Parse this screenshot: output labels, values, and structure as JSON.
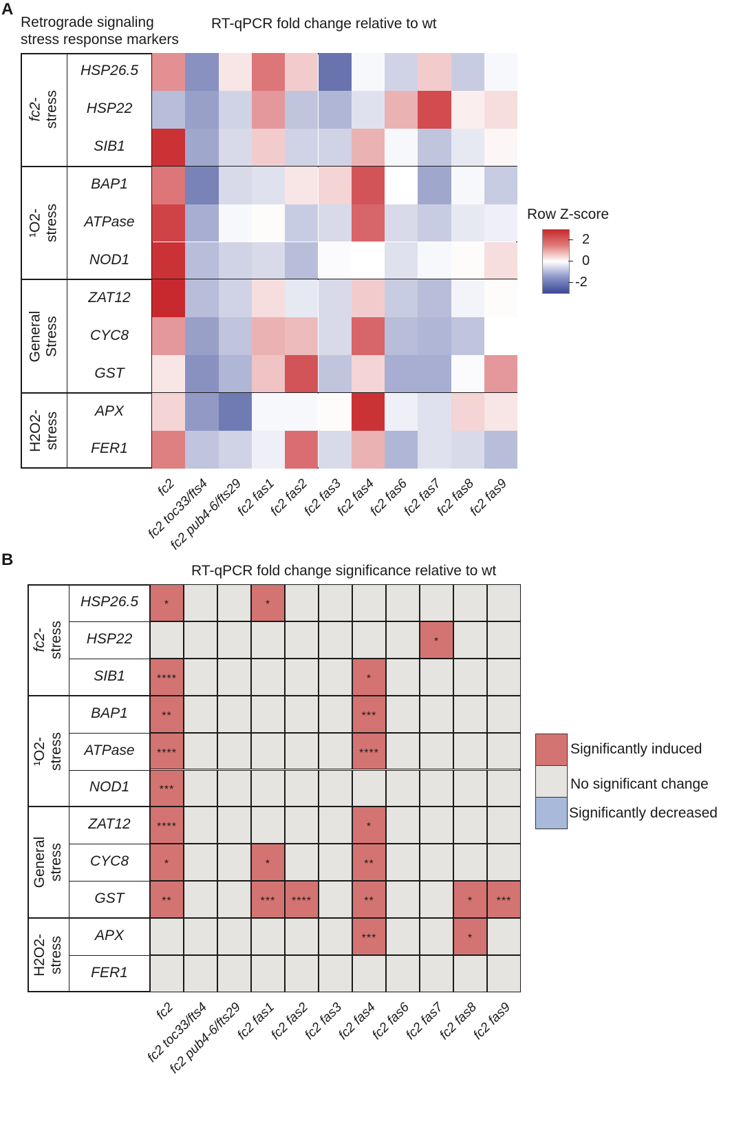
{
  "panel_a": {
    "letter": "A",
    "header_left": [
      "Retrograde signaling",
      "stress response markers"
    ],
    "header_center": "RT-qPCR fold change relative to wt",
    "legend": {
      "title": "Row Z-score",
      "ticks": [
        "2",
        "0",
        "-2"
      ]
    }
  },
  "panel_b": {
    "letter": "B",
    "header_center": "RT-qPCR fold change significance relative to wt",
    "legend": {
      "items": [
        {
          "label": "Significantly induced",
          "color": "#d47472"
        },
        {
          "label": "No significant change",
          "color": "#e5e4e0"
        },
        {
          "label": "Significantly decreased",
          "color": "#a9b9d9"
        }
      ]
    }
  },
  "colors": {
    "induced": "#d47472",
    "neutral": "#e5e4e0",
    "decreased": "#a9b9d9",
    "high": "#c8292e",
    "low": "#3a4896"
  },
  "chart_data": [
    {
      "type": "heatmap",
      "title": "RT-qPCR fold change relative to wt",
      "legend_title": "Row Z-score",
      "value_range": [
        -2.5,
        2.5
      ],
      "columns": [
        "fc2",
        "fc2 toc33/fts4",
        "fc2 pub4-6/fts29",
        "fc2 fas1",
        "fc2 fas2",
        "fc2 fas3",
        "fc2 fas4",
        "fc2 fas6",
        "fc2 fas7",
        "fc2 fas8",
        "fc2 fas9"
      ],
      "groups": [
        {
          "label": [
            "fc2-",
            "stress"
          ],
          "genes": [
            "HSP26.5",
            "HSP22",
            "SIB1"
          ]
        },
        {
          "label": [
            "¹O2-",
            "stress"
          ],
          "genes": [
            "BAP1",
            "ATPase",
            "NOD1"
          ]
        },
        {
          "label": [
            "General",
            "Stress"
          ],
          "genes": [
            "ZAT12",
            "CYC8",
            "GST"
          ]
        },
        {
          "label": [
            "H2O2-",
            "stress"
          ],
          "genes": [
            "APX",
            "FER1"
          ]
        }
      ],
      "values": [
        [
          1.3,
          -1.5,
          0.3,
          1.6,
          0.6,
          -1.9,
          -0.1,
          -0.6,
          0.6,
          -0.7,
          -0.1
        ],
        [
          -0.9,
          -1.3,
          -0.6,
          1.2,
          -0.8,
          -1.0,
          -0.4,
          0.9,
          2.1,
          0.2,
          0.4
        ],
        [
          2.4,
          -1.2,
          -0.5,
          0.6,
          -0.6,
          -0.6,
          0.9,
          -0.1,
          -0.8,
          -0.3,
          0.1
        ],
        [
          1.6,
          -1.7,
          -0.5,
          -0.4,
          0.3,
          0.5,
          2.0,
          0.0,
          -1.2,
          -0.1,
          -0.7
        ],
        [
          2.2,
          -1.1,
          -0.1,
          0.05,
          -0.7,
          -0.5,
          1.8,
          -0.5,
          -0.7,
          -0.3,
          -0.2
        ],
        [
          2.4,
          -0.9,
          -0.6,
          -0.5,
          -0.9,
          -0.05,
          0.0,
          -0.4,
          -0.1,
          0.05,
          0.4
        ],
        [
          2.5,
          -0.9,
          -0.6,
          0.4,
          -0.3,
          -0.5,
          0.6,
          -0.7,
          -0.9,
          -0.15,
          0.05
        ],
        [
          1.2,
          -1.3,
          -0.8,
          0.9,
          0.8,
          -0.5,
          1.8,
          -0.9,
          -1.0,
          -0.8,
          0.0
        ],
        [
          0.3,
          -1.5,
          -1.0,
          0.7,
          2.0,
          -0.8,
          0.5,
          -1.1,
          -1.1,
          -0.05,
          1.2
        ],
        [
          0.5,
          -1.4,
          -1.8,
          -0.1,
          -0.1,
          0.05,
          2.4,
          -0.2,
          -0.4,
          0.5,
          0.3
        ],
        [
          1.5,
          -0.8,
          -0.6,
          -0.2,
          1.7,
          -0.5,
          0.9,
          -1.0,
          -0.4,
          -0.5,
          -0.9
        ]
      ]
    },
    {
      "type": "table",
      "title": "RT-qPCR fold change significance relative to wt",
      "columns": [
        "fc2",
        "fc2 toc33/fts4",
        "fc2 pub4-6/fts29",
        "fc2 fas1",
        "fc2 fas2",
        "fc2 fas3",
        "fc2 fas4",
        "fc2 fas6",
        "fc2 fas7",
        "fc2 fas8",
        "fc2 fas9"
      ],
      "groups": [
        {
          "label": [
            "fc2-",
            "stress"
          ],
          "genes": [
            "HSP26.5",
            "HSP22",
            "SIB1"
          ]
        },
        {
          "label": [
            "¹O2-",
            "stress"
          ],
          "genes": [
            "BAP1",
            "ATPase",
            "NOD1"
          ]
        },
        {
          "label": [
            "General",
            "stress"
          ],
          "genes": [
            "ZAT12",
            "CYC8",
            "GST"
          ]
        },
        {
          "label": [
            "H2O2-",
            "stress"
          ],
          "genes": [
            "APX",
            "FER1"
          ]
        }
      ],
      "cells": [
        [
          "*",
          "",
          "",
          "*",
          "",
          "",
          "",
          "",
          "",
          "",
          ""
        ],
        [
          "",
          "",
          "",
          "",
          "",
          "",
          "",
          "",
          "*",
          "",
          ""
        ],
        [
          "****",
          "",
          "",
          "",
          "",
          "",
          "*",
          "",
          "",
          "",
          ""
        ],
        [
          "**",
          "",
          "",
          "",
          "",
          "",
          "***",
          "",
          "",
          "",
          ""
        ],
        [
          "****",
          "",
          "",
          "",
          "",
          "",
          "****",
          "",
          "",
          "",
          ""
        ],
        [
          "***",
          "",
          "",
          "",
          "",
          "",
          "",
          "",
          "",
          "",
          ""
        ],
        [
          "****",
          "",
          "",
          "",
          "",
          "",
          "*",
          "",
          "",
          "",
          ""
        ],
        [
          "*",
          "",
          "",
          "*",
          "",
          "",
          "**",
          "",
          "",
          "",
          ""
        ],
        [
          "**",
          "",
          "",
          "***",
          "****",
          "",
          "**",
          "",
          "",
          "*",
          "***"
        ],
        [
          "",
          "",
          "",
          "",
          "",
          "",
          "***",
          "",
          "",
          "*",
          ""
        ],
        [
          "",
          "",
          "",
          "",
          "",
          "",
          "",
          "",
          "",
          "",
          ""
        ]
      ]
    }
  ]
}
